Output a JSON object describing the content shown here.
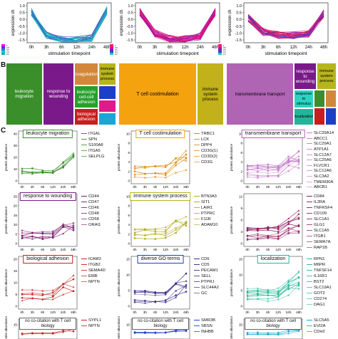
{
  "panel_a": {
    "ylabel": "expression ch",
    "xlabel": "stimulation timepoint",
    "ticks_x": [
      "0h",
      "3h",
      "6h",
      "12h",
      "24h",
      "48h"
    ],
    "ticks_y": [
      "1.0",
      "0.5",
      "0.0",
      "-0.5",
      "-1.0",
      "-1.5"
    ],
    "plots": [
      {
        "colors": [
          "#19c9c0",
          "#1a7fd4",
          "#5b3fc4",
          "#17b3a3",
          "#2ad1c8"
        ]
      },
      {
        "colors": [
          "#e0147a",
          "#c4109e",
          "#8a1ab8",
          "#ff2a80",
          "#d41060"
        ]
      },
      {
        "colors": [
          "#e01478",
          "#c41090",
          "#3a3fd0",
          "#ff3a7a",
          "#b81040"
        ]
      }
    ],
    "colorbar_labels": [
      "1",
      "0.8",
      "0.6",
      "0.4",
      "0.2"
    ]
  },
  "panel_b": {
    "letter": "B",
    "maps": [
      {
        "cells": [
          {
            "label": "leukocyte migration",
            "color": "#3a8f2a"
          },
          {
            "label": "response to wounding",
            "color": "#7a1a8a"
          },
          {
            "label": "coagulation",
            "color": "#d2873a"
          },
          {
            "label": "immune system process",
            "color": "#b7b51c"
          },
          {
            "label": "leukocyte cell-cell adhesion",
            "color": "#26a02c"
          },
          {
            "label": "biological adhesion",
            "color": "#c81e1e"
          },
          {
            "label": "",
            "color": "#1c3fc8"
          },
          {
            "label": "",
            "color": "#e01a8a"
          },
          {
            "label": "",
            "color": "#1aa6d4"
          }
        ]
      },
      {
        "cells": [
          {
            "label": "T cell costimulation",
            "color": "#f4a20e"
          },
          {
            "label": "immune system process",
            "color": "#c3b11a"
          }
        ]
      },
      {
        "cells": [
          {
            "label": "transmembrane transport",
            "color": "#b064b4"
          },
          {
            "label": "response to wounding",
            "color": "#7a1a8a"
          },
          {
            "label": "immune system process",
            "color": "#b7b51c"
          },
          {
            "label": "response to stimulus",
            "color": "#2ad4c2"
          },
          {
            "label": "localization",
            "color": "#23b59a"
          },
          {
            "label": "",
            "color": "#3a8f2a"
          },
          {
            "label": "",
            "color": "#d2873a"
          },
          {
            "label": "",
            "color": "#c81e1e"
          },
          {
            "label": "",
            "color": "#1c3fc8"
          }
        ]
      }
    ]
  },
  "panel_c": {
    "letter": "C",
    "ylabel": "protein abundance",
    "xticks": [
      "0h",
      "3h",
      "6h",
      "12h",
      "24h",
      "48h"
    ],
    "panels": [
      {
        "title": "leukocyte migration",
        "color": "#3a8f2a",
        "border": "#3a8f2a",
        "legend": [
          "ITGAL",
          "SPN",
          "S100A8",
          "ITGA5",
          "SELPLG"
        ],
        "yticks": [
          "40",
          "30",
          "20",
          "10",
          "0"
        ]
      },
      {
        "title": "T cell costimulation",
        "color": "#d98a10",
        "border": "#f4a20e",
        "legend": [
          "TRBC1",
          "LCK",
          "DPP4",
          "CD3G(1)",
          "CD3D(2)",
          "CD3G"
        ],
        "yticks": [
          "10",
          "8",
          "6",
          "4",
          "2",
          "0"
        ]
      },
      {
        "title": "transmembrane transport",
        "color": "#c47cc8",
        "border": "#b064b4",
        "legend": [
          "SLC39A14",
          "ABCC1",
          "SLC29A1",
          "ATP1A1",
          "SLC12A7",
          "SLC25A6",
          "FLVCR1",
          "SLC12A6",
          "SLC3A2",
          "TMEM30A",
          "ABCB1"
        ],
        "yticks": [
          "10",
          "8",
          "6",
          "4",
          "2",
          "0"
        ]
      },
      {
        "title": "response to wounding",
        "color": "#7a1a6a",
        "border": "#7a1a8a",
        "legend": [
          "CD44",
          "CD47",
          "CD46",
          "CD48",
          "CD58",
          "ORAI1"
        ],
        "yticks": [
          "25",
          "20",
          "15",
          "10",
          "5",
          "0"
        ]
      },
      {
        "title": "immune system process",
        "color": "#b0a81a",
        "border": "#b7b51c",
        "legend": [
          "BTN3A3",
          "SIT1",
          "LAIR1",
          "PTPRC",
          "F11R",
          "ADAM10"
        ],
        "yticks": [
          "10",
          "8",
          "6",
          "4",
          "2",
          "0"
        ]
      },
      {
        "title": "",
        "color": "#8a1a5a",
        "border": "#ffffff",
        "legend": [
          "CD84",
          "IL2RA",
          "TNFRSF4",
          "CD109",
          "SLC1A1",
          "GLG1",
          "SLC1A5",
          "ITGB1",
          "SEMA7A",
          "RAP1B"
        ],
        "yticks": [
          "12",
          "9",
          "6",
          "3",
          "0"
        ]
      },
      {
        "title": "biological adhesion",
        "color": "#c81e1e",
        "border": "#c81e1e",
        "legend": [
          "ICAM3",
          "ITGB2",
          "SEMA4D",
          "EMB",
          "NPTN"
        ],
        "yticks": [
          "20",
          "15",
          "10",
          "5",
          "0"
        ]
      },
      {
        "title": "diverse GO terms",
        "color": "#3a2a8a",
        "border": "#1c3fc8",
        "legend": [
          "CD6",
          "CD5",
          "PECAM1",
          "SELL",
          "PTPRJ",
          "SLC44A2",
          "GC"
        ],
        "yticks": [
          "15",
          "10",
          "5",
          "0"
        ]
      },
      {
        "title": "localization",
        "color": "#2ab89a",
        "border": "#23b59a",
        "legend": [
          "RPN1",
          "M6PR",
          "TNFSF14",
          "IL16R1",
          "BST2",
          "SLC19A1",
          "GOT2",
          "CD274",
          "DAG1"
        ],
        "yticks": [
          "15",
          "10",
          "5",
          "0"
        ]
      },
      {
        "title": "no co-citation with T cell biology",
        "color": "#c81e1e",
        "border": "#666666",
        "legend": [
          "SYPL1",
          "NPTN"
        ],
        "yticks": [
          "15"
        ]
      },
      {
        "title": "no co-citation with T cell biology",
        "color": "#1c3fc8",
        "border": "#666666",
        "legend": [
          "SMR3B",
          "SBSN",
          "INHBB"
        ],
        "yticks": [
          "15"
        ]
      },
      {
        "title": "no co-citation with T cell biology",
        "color": "#1aa6d4",
        "border": "#666666",
        "legend": [
          "SLC5A5",
          "EVI2A",
          "CDH2"
        ],
        "yticks": [
          "15"
        ]
      }
    ]
  }
}
